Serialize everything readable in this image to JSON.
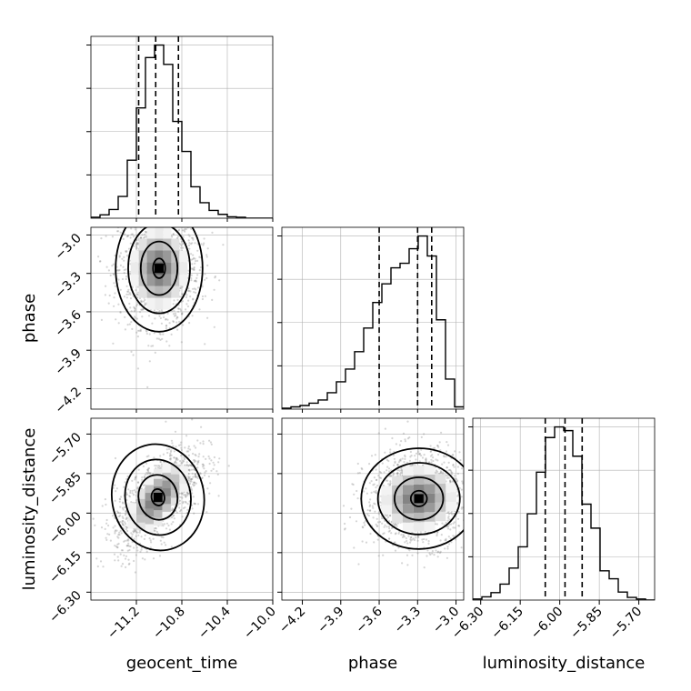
{
  "chart_data": {
    "type": "corner",
    "parameters": [
      "geocent_time",
      "phase",
      "luminosity_distance"
    ],
    "axis_labels": {
      "x": [
        "geocent_time",
        "phase",
        "luminosity_distance"
      ],
      "y": [
        "phase",
        "luminosity_distance"
      ]
    },
    "ranges": {
      "geocent_time": [
        -11.6,
        -10.0
      ],
      "phase": [
        -4.36,
        -2.94
      ],
      "luminosity_distance": [
        -6.33,
        -5.64
      ]
    },
    "ticks": {
      "geocent_time": {
        "values": [
          -11.2,
          -10.8,
          -10.4,
          -10.0
        ],
        "labels": [
          "−11.2",
          "−10.8",
          "−10.4",
          "−10.0"
        ]
      },
      "phase": {
        "values": [
          -4.2,
          -3.9,
          -3.6,
          -3.3,
          -3.0
        ],
        "labels": [
          "−4.2",
          "−3.9",
          "−3.6",
          "−3.3",
          "−3.0"
        ]
      },
      "luminosity_distance": {
        "values": [
          -6.3,
          -6.15,
          -6.0,
          -5.85,
          -5.7
        ],
        "labels": [
          "−6.30",
          "−6.15",
          "−6.00",
          "−5.85",
          "−5.70"
        ]
      }
    },
    "grid": true,
    "histograms": [
      {
        "param": "geocent_time",
        "bin_edges": [
          -11.6,
          -11.52,
          -11.44,
          -11.36,
          -11.28,
          -11.2,
          -11.12,
          -11.04,
          -10.96,
          -10.88,
          -10.8,
          -10.72,
          -10.64,
          -10.56,
          -10.48,
          -10.4,
          -10.32,
          -10.24,
          -10.16,
          -10.08,
          -10.0
        ],
        "counts": [
          2,
          7,
          18,
          45,
          120,
          228,
          332,
          358,
          318,
          200,
          138,
          65,
          32,
          16,
          8,
          3,
          2,
          0,
          0,
          0
        ],
        "quantiles": [
          -11.18,
          -11.03,
          -10.83
        ]
      },
      {
        "param": "phase",
        "bin_edges": [
          -4.36,
          -4.289,
          -4.218,
          -4.147,
          -4.076,
          -4.005,
          -3.934,
          -3.863,
          -3.792,
          -3.721,
          -3.65,
          -3.579,
          -3.508,
          -3.437,
          -3.366,
          -3.295,
          -3.224,
          -3.153,
          -3.082,
          -3.011,
          -2.94
        ],
        "counts": [
          2,
          5,
          8,
          13,
          20,
          36,
          60,
          88,
          126,
          178,
          234,
          275,
          310,
          320,
          352,
          380,
          336,
          196,
          66,
          5
        ],
        "quantiles": [
          -3.6,
          -3.3,
          -3.19
        ]
      },
      {
        "param": "luminosity_distance",
        "bin_edges": [
          -6.33,
          -6.2955,
          -6.261,
          -6.2265,
          -6.192,
          -6.1575,
          -6.123,
          -6.0885,
          -6.054,
          -6.0195,
          -5.985,
          -5.9505,
          -5.916,
          -5.8815,
          -5.847,
          -5.8125,
          -5.778,
          -5.7435,
          -5.709,
          -5.6745,
          -5.64
        ],
        "counts": [
          2,
          6,
          14,
          30,
          60,
          100,
          162,
          240,
          305,
          325,
          318,
          270,
          180,
          135,
          55,
          40,
          15,
          5,
          2,
          0
        ],
        "quantiles": [
          -6.055,
          -5.98,
          -5.915
        ]
      }
    ],
    "density_2d": [
      {
        "x": "geocent_time",
        "y": "phase",
        "center": [
          -11.0,
          -3.26
        ],
        "std": [
          0.17,
          0.22
        ],
        "correlation": 0.0,
        "spread_y": [
          -4.36,
          -2.98
        ]
      },
      {
        "x": "geocent_time",
        "y": "luminosity_distance",
        "center": [
          -11.01,
          -5.94
        ],
        "std": [
          0.18,
          0.09
        ],
        "correlation": 0.62,
        "spread_y": [
          -6.3,
          -5.72
        ]
      },
      {
        "x": "phase",
        "y": "luminosity_distance",
        "center": [
          -3.29,
          -5.945
        ],
        "std": [
          0.2,
          0.085
        ],
        "correlation": 0.05,
        "spread_y": [
          -6.3,
          -5.72
        ]
      }
    ]
  }
}
